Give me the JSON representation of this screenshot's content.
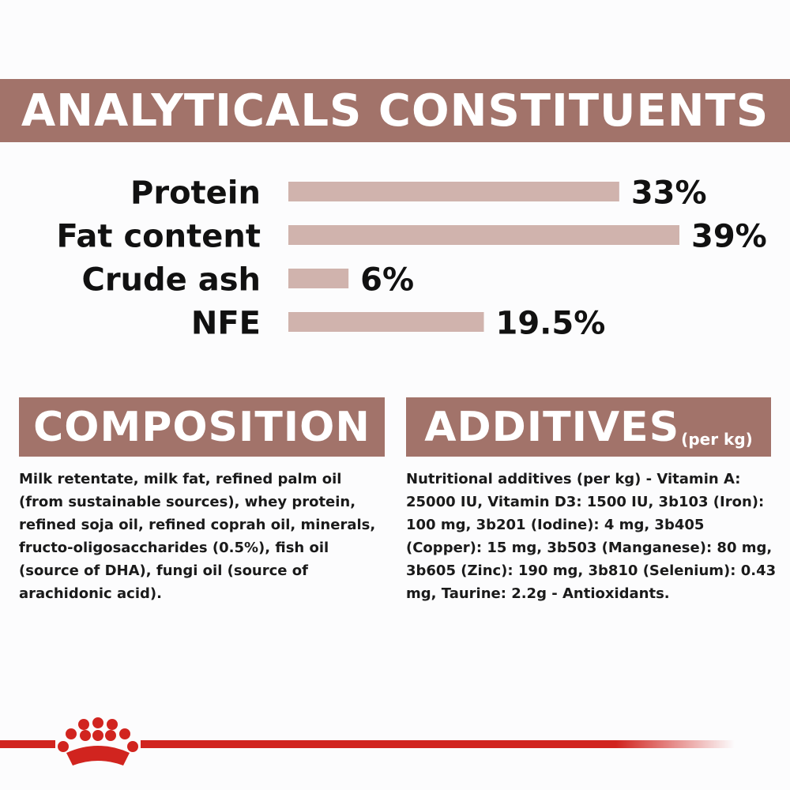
{
  "chart_data": {
    "type": "bar",
    "title": "ANALYTICALS CONSTITUENTS",
    "categories": [
      "Protein",
      "Fat content",
      "Crude ash",
      "NFE"
    ],
    "values": [
      33,
      39,
      6,
      19.5
    ],
    "value_labels": [
      "33%",
      "39%",
      "6%",
      "19.5%"
    ],
    "orientation": "horizontal",
    "xlim": [
      0,
      39
    ],
    "grid": false,
    "legend": "none",
    "bar_color": "#d0b3ad"
  },
  "composition": {
    "heading": "COMPOSITION",
    "text": "Milk retentate, milk fat, refined palm oil (from sustainable sources), whey protein, refined soja oil, refined coprah oil, minerals, fructo-oligosaccharides (0.5%), fish oil (source of DHA), fungi oil (source of arachidonic acid)."
  },
  "additives": {
    "heading": "ADDITIVES",
    "heading_sub": "(per kg)",
    "text": "Nutritional additives (per kg) - Vitamin A: 25000 IU, Vitamin D3: 1500 IU, 3b103 (Iron): 100 mg, 3b201 (Iodine): 4 mg, 3b405 (Copper): 15 mg, 3b503 (Manganese): 80 mg, 3b605 (Zinc): 190 mg, 3b810 (Selenium): 0.43 mg, Taurine: 2.2g - Antioxidants."
  },
  "colors": {
    "banner": "#a2736a",
    "bar": "#d0b3ad",
    "brand_red": "#d1241f"
  },
  "footer": {
    "logo": "royal-canin-crown-icon"
  }
}
